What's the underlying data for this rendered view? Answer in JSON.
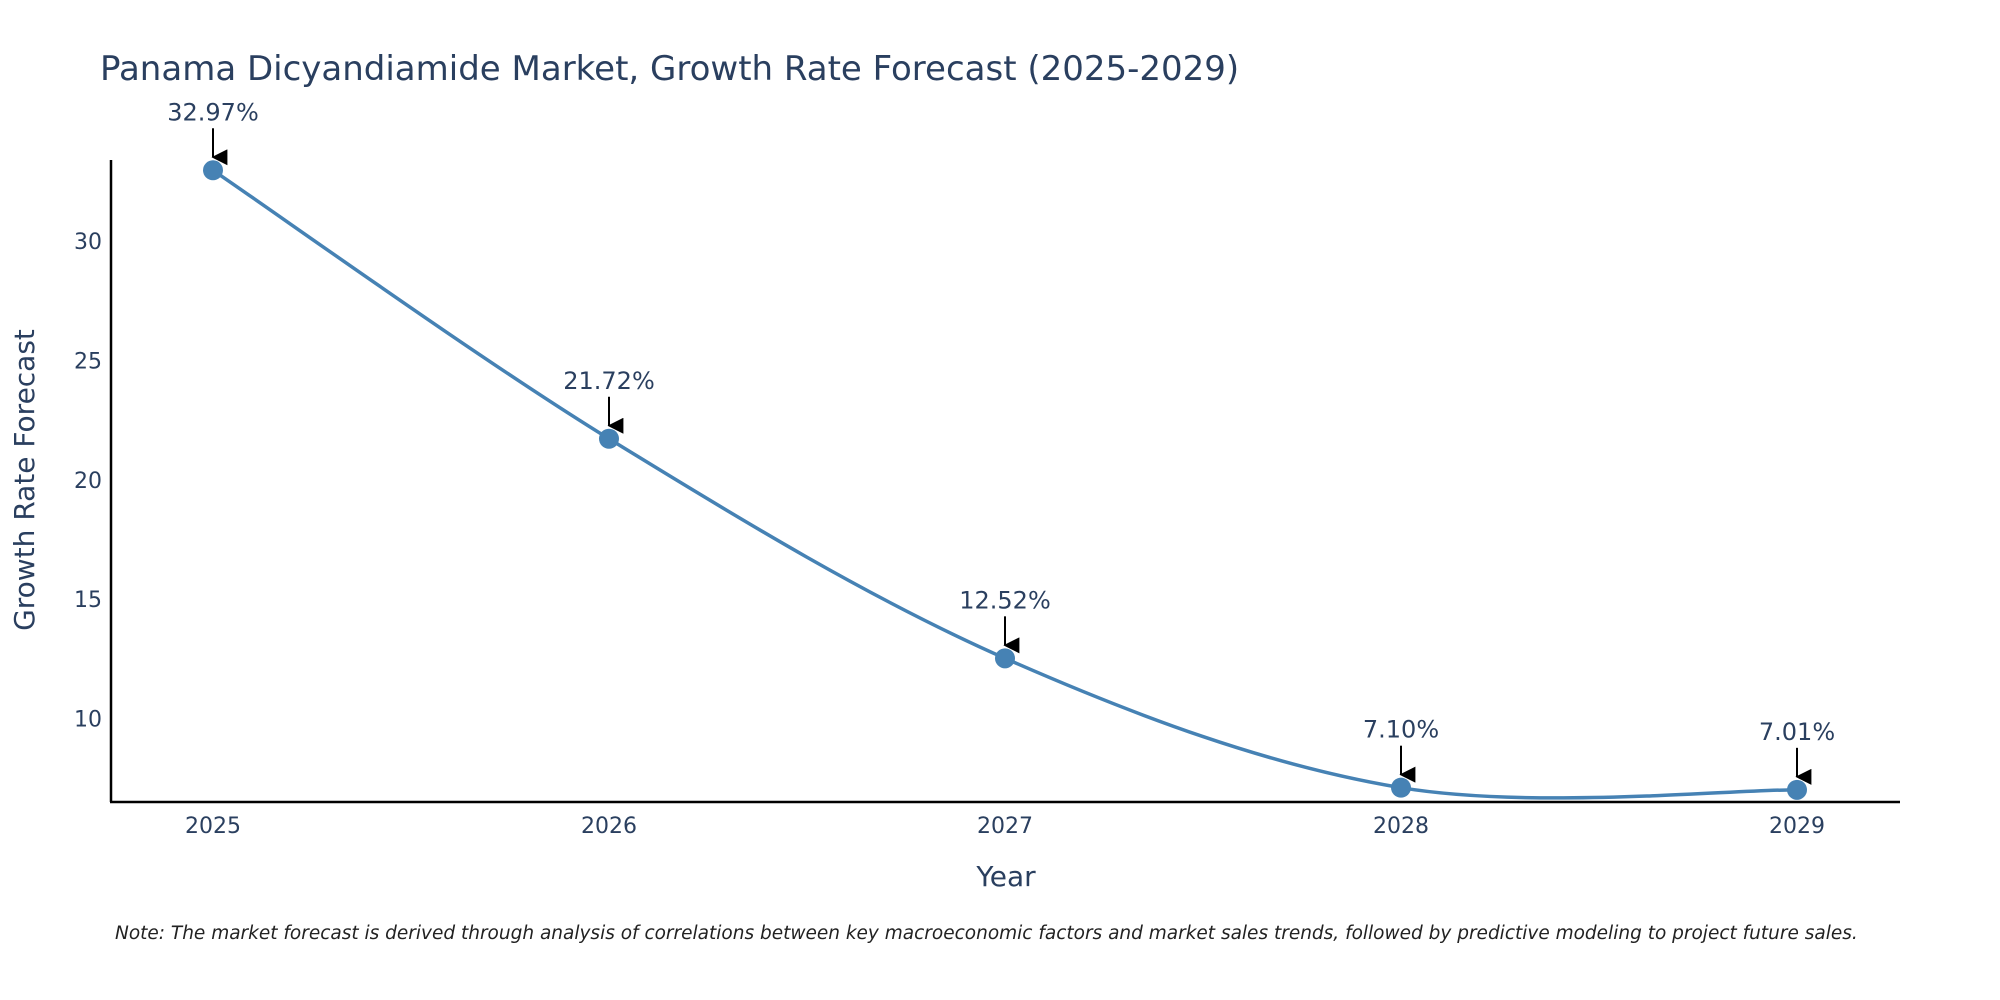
{
  "chart_data": {
    "type": "line",
    "title": "Panama Dicyandiamide Market, Growth Rate Forecast (2025-2029)",
    "xlabel": "Year",
    "ylabel": "Growth Rate Forecast",
    "categories": [
      "2025",
      "2026",
      "2027",
      "2028",
      "2029"
    ],
    "series": [
      {
        "name": "Growth Rate Forecast",
        "values": [
          32.97,
          21.72,
          12.52,
          7.1,
          7.01
        ],
        "labels": [
          "32.97%",
          "21.72%",
          "12.52%",
          "7.10%",
          "7.01%"
        ]
      }
    ],
    "yticks": [
      "10",
      "15",
      "20",
      "25",
      "30"
    ],
    "ylim": [
      6.5,
      33.4
    ],
    "grid": false,
    "line_color": "#4682b4",
    "marker_color": "#4682b4",
    "arrow_color": "#000000",
    "note": "Note: The market forecast is derived through analysis of correlations between key macroeconomic factors and market sales trends, followed by predictive modeling to project future sales."
  }
}
